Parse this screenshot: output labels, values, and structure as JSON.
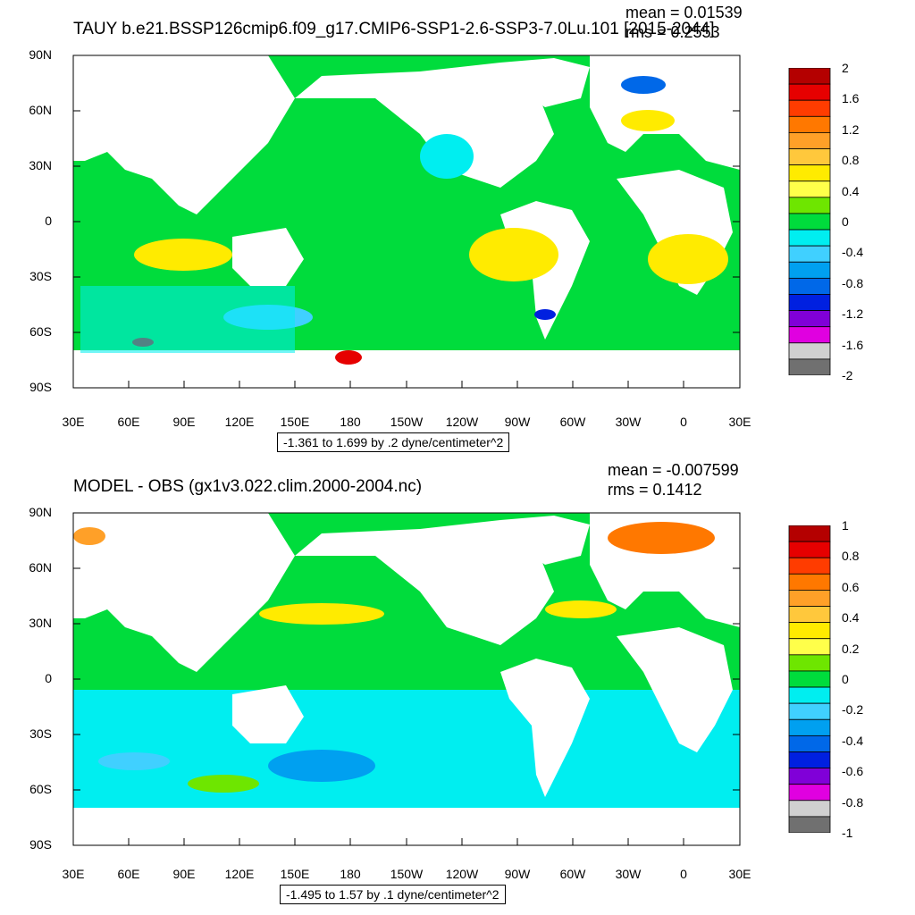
{
  "top": {
    "title": "TAUY b.e21.BSSP126cmip6.f09_g17.CMIP6-SSP1-2.6-SSP3-7.0Lu.101 [2015-2044]",
    "mean_text": "mean = 0.01539",
    "rms_text": "rms = 0.2553",
    "range_text": "-1.361 to 1.699 by .2 dyne/centimeter^2",
    "colorbar_labels": [
      "2",
      "1.6",
      "1.2",
      "0.8",
      "0.4",
      "0",
      "-0.4",
      "-0.8",
      "-1.2",
      "-1.6",
      "-2"
    ],
    "colorbar_colors": [
      "#b40000",
      "#e60000",
      "#ff3c00",
      "#ff7800",
      "#ffa028",
      "#ffc83c",
      "#ffeb00",
      "#ffff4a",
      "#6ee600",
      "#00dc3c",
      "#00eef0",
      "#40d0ff",
      "#00a0f0",
      "#0068e8",
      "#0020e0",
      "#8000d8",
      "#e000e0",
      "#d0d0d0",
      "#707070"
    ]
  },
  "bottom": {
    "title": "MODEL - OBS (gx1v3.022.clim.2000-2004.nc)",
    "mean_text": "mean = -0.007599",
    "rms_text": "rms = 0.1412",
    "range_text": "-1.495 to 1.57 by .1 dyne/centimeter^2",
    "colorbar_labels": [
      "1",
      "0.8",
      "0.6",
      "0.4",
      "0.2",
      "0",
      "-0.2",
      "-0.4",
      "-0.6",
      "-0.8",
      "-1"
    ],
    "colorbar_colors": [
      "#b40000",
      "#e60000",
      "#ff3c00",
      "#ff7800",
      "#ffa028",
      "#ffc83c",
      "#ffeb00",
      "#ffff4a",
      "#6ee600",
      "#00dc3c",
      "#00eef0",
      "#40d0ff",
      "#00a0f0",
      "#0068e8",
      "#0020e0",
      "#8000d8",
      "#e000e0",
      "#d0d0d0",
      "#707070"
    ]
  },
  "lat_labels": [
    "90N",
    "60N",
    "30N",
    "0",
    "30S",
    "60S",
    "90S"
  ],
  "lon_labels": [
    "30E",
    "60E",
    "90E",
    "120E",
    "150E",
    "180",
    "150W",
    "120W",
    "90W",
    "60W",
    "30W",
    "0",
    "30E"
  ]
}
